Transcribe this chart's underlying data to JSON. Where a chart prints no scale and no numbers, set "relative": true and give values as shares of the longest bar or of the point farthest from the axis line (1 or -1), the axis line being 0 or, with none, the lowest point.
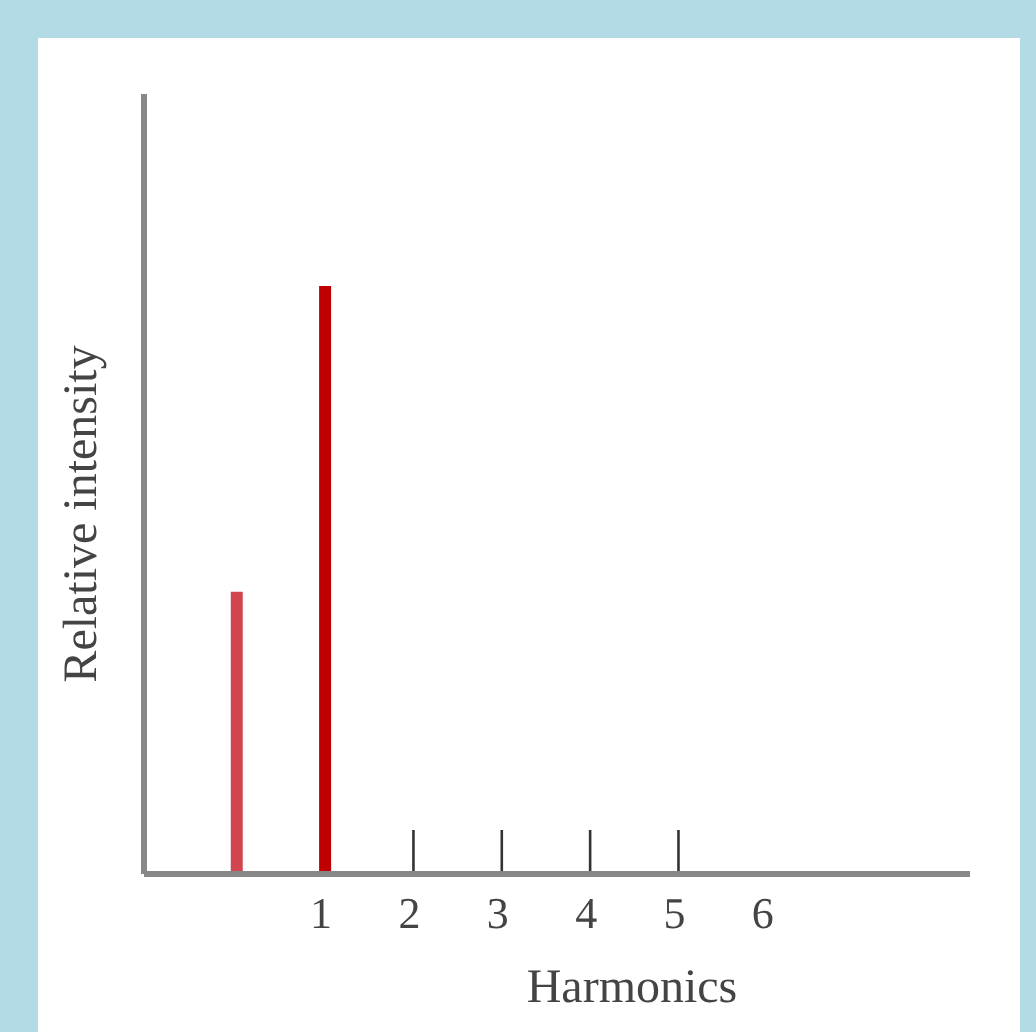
{
  "chart_data": {
    "type": "bar",
    "relative": true,
    "xlabel": "Harmonics",
    "ylabel": "Relative intensity",
    "categories": [
      null,
      "1",
      "2",
      "3",
      "4",
      "5",
      "6"
    ],
    "values": [
      0.48,
      1,
      null,
      null,
      null,
      null,
      null
    ],
    "colors": [
      "#d0454f",
      "#c00000",
      null,
      null,
      null,
      null,
      null
    ]
  }
}
